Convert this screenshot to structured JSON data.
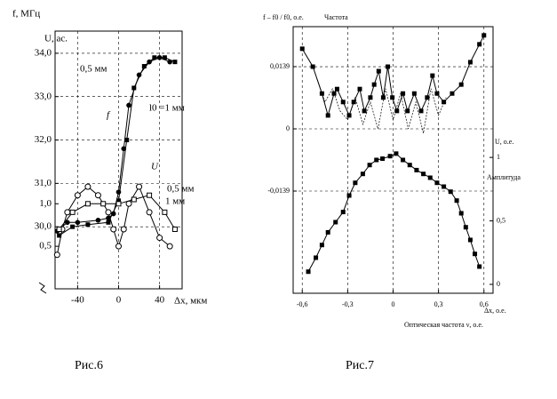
{
  "chart_data": [
    {
      "type": "line",
      "caption": "Рис.6",
      "ylabel": "f, МГц",
      "y2label": "U, ас.",
      "xlabel": "Δx, мкм",
      "xlim": [
        -62,
        62
      ],
      "xticks": [
        -40,
        0,
        40
      ],
      "ylim": [
        28.57,
        34.51
      ],
      "yticks": [
        {
          "value": 30,
          "label": "30,0"
        },
        {
          "value": 31,
          "label": "31,0"
        },
        {
          "value": 32,
          "label": "32,0"
        },
        {
          "value": 33,
          "label": "33,0"
        },
        {
          "value": 34,
          "label": "34,0"
        }
      ],
      "y2lim": [
        0,
        3.03
      ],
      "y2ticks": [
        {
          "value": 1,
          "label": "1,0"
        },
        {
          "value": 0.5,
          "label": "0,5"
        }
      ],
      "grid": true,
      "series": [
        {
          "name": "0,5 мм",
          "color": "#000",
          "marker": "circle-filled",
          "x": [
            -60,
            -50,
            -40,
            -20,
            -10,
            -5,
            0,
            5,
            10,
            20,
            30,
            40,
            50
          ],
          "values": [
            29.9,
            30.1,
            30.1,
            30.15,
            30.2,
            30.3,
            30.8,
            31.8,
            32.8,
            33.5,
            33.8,
            33.9,
            33.8
          ]
        },
        {
          "name": "l0 =1 мм",
          "color": "#000",
          "marker": "square-filled",
          "x": [
            -58,
            -45,
            -30,
            -10,
            0,
            8,
            15,
            25,
            35,
            45,
            55
          ],
          "values": [
            29.8,
            30.0,
            30.05,
            30.1,
            30.6,
            32.0,
            33.2,
            33.7,
            33.9,
            33.9,
            33.8
          ]
        },
        {
          "name": "0,5 мм",
          "color": "#000",
          "marker": "circle-open",
          "axis": "y2",
          "x": [
            -60,
            -55,
            -50,
            -40,
            -30,
            -20,
            -10,
            -5,
            0,
            5,
            10,
            20,
            30,
            40,
            50
          ],
          "values": [
            0.4,
            0.7,
            0.9,
            1.1,
            1.2,
            1.1,
            0.9,
            0.7,
            0.5,
            0.7,
            1.0,
            1.2,
            0.9,
            0.6,
            0.5
          ]
        },
        {
          "name": "1 мм",
          "color": "#000",
          "marker": "square-open",
          "axis": "y2",
          "x": [
            -58,
            -45,
            -30,
            -15,
            0,
            15,
            30,
            45,
            55
          ],
          "values": [
            0.7,
            0.9,
            1.0,
            1.0,
            1.0,
            1.05,
            1.1,
            0.9,
            0.7
          ]
        }
      ],
      "annotations": [
        "f",
        "U"
      ]
    },
    {
      "type": "line",
      "caption": "Рис.7",
      "ylabel": "f – f0 / f0, о.е.",
      "y2label": "U, о.е.",
      "xlabel": "Δx, о.е.",
      "xlabel2": "Оптическая частота ν, о.е.",
      "xlim": [
        -0.66,
        0.66
      ],
      "xticks": [
        {
          "value": -0.6,
          "label": "-0,6"
        },
        {
          "value": -0.3,
          "label": "-0,3"
        },
        0,
        {
          "value": 0.3,
          "label": "0,3"
        },
        {
          "value": 0.6,
          "label": "0,6"
        }
      ],
      "ylim": [
        -0.03674,
        0.02284
      ],
      "yticks": [
        {
          "value": 0.0139,
          "label": "0,0139"
        },
        0,
        {
          "value": -0.0139,
          "label": "-0,0139"
        }
      ],
      "y2lim": [
        -0.07,
        2.03
      ],
      "y2ticks": [
        1,
        {
          "value": 0.5,
          "label": "0,5"
        },
        0
      ],
      "grid": true,
      "series": [
        {
          "name": "Частота",
          "color": "#000",
          "marker": "square-filled",
          "x": [
            -0.6,
            -0.53,
            -0.47,
            -0.43,
            -0.39,
            -0.37,
            -0.33,
            -0.29,
            -0.26,
            -0.22,
            -0.19,
            -0.15,
            -0.125,
            -0.095,
            -0.065,
            -0.035,
            -0.005,
            0.025,
            0.065,
            0.095,
            0.14,
            0.185,
            0.225,
            0.26,
            0.29,
            0.335,
            0.39,
            0.45,
            0.51,
            0.57,
            0.6
          ],
          "values": [
            0.0179,
            0.0139,
            0.0079,
            0.003,
            0.0079,
            0.0089,
            0.006,
            0.003,
            0.006,
            0.0089,
            0.004,
            0.007,
            0.0099,
            0.0129,
            0.007,
            0.0139,
            0.007,
            0.004,
            0.0079,
            0.004,
            0.0079,
            0.004,
            0.007,
            0.0119,
            0.0079,
            0.006,
            0.0079,
            0.0099,
            0.0149,
            0.0189,
            0.0209
          ]
        },
        {
          "color": "#000",
          "dash": true,
          "x": [
            -0.5,
            -0.45,
            -0.4,
            -0.35,
            -0.3,
            -0.25,
            -0.2,
            -0.15,
            -0.1,
            -0.05,
            0,
            0.05,
            0.1,
            0.15,
            0.2,
            0.25,
            0.3,
            0.35
          ],
          "values": [
            0.011,
            0.006,
            0.009,
            0.004,
            0.002,
            0.007,
            0.001,
            0.006,
            0.0,
            0.009,
            0.002,
            0.008,
            0.0,
            0.006,
            -0.001,
            0.009,
            0.003,
            0.007
          ]
        },
        {
          "name": "Амплитуда",
          "color": "#000",
          "marker": "square-filled",
          "axis": "y2",
          "x": [
            -0.56,
            -0.51,
            -0.47,
            -0.43,
            -0.38,
            -0.33,
            -0.29,
            -0.25,
            -0.2,
            -0.155,
            -0.11,
            -0.07,
            -0.02,
            0.02,
            0.065,
            0.11,
            0.155,
            0.2,
            0.245,
            0.29,
            0.335,
            0.38,
            0.42,
            0.45,
            0.48,
            0.51,
            0.54,
            0.57
          ],
          "values": [
            0.1,
            0.21,
            0.31,
            0.41,
            0.49,
            0.57,
            0.7,
            0.8,
            0.87,
            0.94,
            0.98,
            0.99,
            1.01,
            1.03,
            0.98,
            0.94,
            0.9,
            0.87,
            0.84,
            0.8,
            0.77,
            0.73,
            0.66,
            0.56,
            0.45,
            0.35,
            0.24,
            0.14
          ]
        }
      ]
    }
  ]
}
